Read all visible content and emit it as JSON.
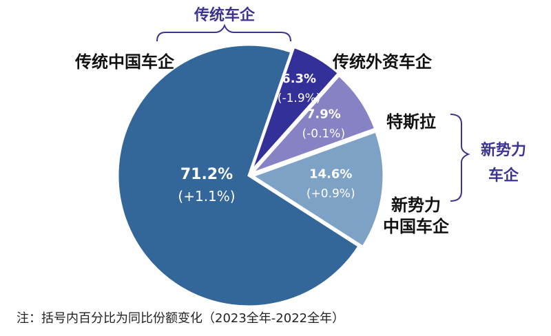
{
  "chart_data": {
    "type": "pie",
    "slices": [
      {
        "label": "传统中国车企",
        "value": 71.2,
        "value_text": "71.2%",
        "change_text": "(+1.1%)",
        "color": "#336699"
      },
      {
        "label": "传统外资车企",
        "value": 6.3,
        "value_text": "6.3%",
        "change_text": "(-1.9%)",
        "color": "#33309a"
      },
      {
        "label": "特斯拉",
        "value": 7.9,
        "value_text": "7.9%",
        "change_text": "(-0.1%)",
        "color": "#8682c4"
      },
      {
        "label": "新势力中国车企",
        "label_lines": [
          "新势力",
          "中国车企"
        ],
        "value": 14.6,
        "value_text": "14.6%",
        "change_text": "(+0.9%)",
        "color": "#7da2c6"
      }
    ],
    "groups": [
      {
        "label": "传统车企",
        "members": [
          "传统中国车企",
          "传统外资车企"
        ]
      },
      {
        "label_lines": [
          "新势力",
          "车企"
        ],
        "members": [
          "特斯拉",
          "新势力中国车企"
        ]
      }
    ],
    "note": "注：括号内百分比为同比份额变化（2023全年-2022全年）"
  },
  "colors": {
    "group_label": "#3a3490",
    "bracket": "#3a3490"
  }
}
